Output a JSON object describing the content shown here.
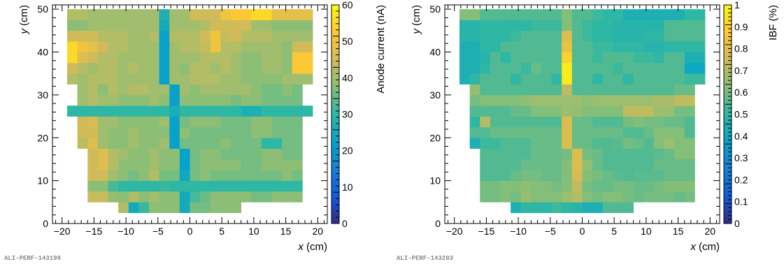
{
  "chart_data": [
    {
      "type": "heatmap",
      "panel_id": "ALI-PERF-143199",
      "title": "",
      "xlabel": "x (cm)",
      "ylabel": "y (cm)",
      "xlim": [
        -21.5,
        21.5
      ],
      "ylim": [
        0,
        51
      ],
      "xticks": [
        -20,
        -15,
        -10,
        -5,
        0,
        5,
        10,
        15,
        20
      ],
      "yticks": [
        0,
        10,
        20,
        30,
        40,
        50
      ],
      "colorbar": {
        "label": "Anode current (nA)",
        "min": 0,
        "max": 60,
        "ticks": [
          0,
          10,
          20,
          30,
          40,
          50,
          60
        ]
      },
      "cell": {
        "dx": 1.6,
        "dy": 2.5,
        "x0": -19.2
      },
      "rows": [
        {
          "y0": 2.5,
          "x0": -11.2,
          "values": [
            42,
            25,
            31,
            38,
            38,
            38,
            25,
            36,
            36,
            38,
            38,
            38
          ]
        },
        {
          "y0": 5.0,
          "x0": -16.0,
          "values": [
            44,
            44,
            39,
            38,
            42,
            38,
            40,
            38,
            38,
            25,
            32,
            35,
            38,
            38,
            38,
            38,
            36,
            36,
            38,
            38,
            38
          ]
        },
        {
          "y0": 7.5,
          "x0": -16.0,
          "values": [
            38,
            38,
            32,
            30,
            30,
            30,
            30,
            31,
            30,
            30,
            30,
            30,
            30,
            30,
            30,
            30,
            30,
            30,
            30,
            30,
            30
          ]
        },
        {
          "y0": 10.0,
          "x0": -16.0,
          "values": [
            45,
            45,
            40,
            38,
            36,
            38,
            42,
            36,
            36,
            24,
            36,
            38,
            36,
            36,
            36,
            36,
            36,
            36,
            36,
            38,
            36
          ]
        },
        {
          "y0": 12.5,
          "x0": -16.0,
          "values": [
            45,
            47,
            42,
            38,
            38,
            38,
            40,
            38,
            38,
            22,
            36,
            38,
            38,
            38,
            38,
            36,
            36,
            38,
            38,
            38,
            38
          ]
        },
        {
          "y0": 15.0,
          "x0": -16.0,
          "values": [
            45,
            47,
            42,
            40,
            38,
            38,
            40,
            38,
            38,
            22,
            36,
            38,
            38,
            36,
            36,
            36,
            36,
            38,
            38,
            36,
            36
          ]
        },
        {
          "y0": 17.5,
          "x0": -17.6,
          "values": [
            43,
            47,
            40,
            38,
            38,
            40,
            38,
            38,
            40,
            22,
            36,
            36,
            36,
            36,
            38,
            36,
            36,
            36,
            30,
            30,
            36,
            36
          ]
        },
        {
          "y0": 20.0,
          "x0": -17.6,
          "values": [
            45,
            45,
            40,
            38,
            38,
            40,
            38,
            38,
            38,
            22,
            38,
            36,
            36,
            36,
            36,
            36,
            36,
            38,
            38,
            36,
            36,
            36
          ]
        },
        {
          "y0": 22.5,
          "x0": -17.6,
          "values": [
            45,
            46,
            40,
            40,
            38,
            38,
            38,
            38,
            40,
            22,
            36,
            38,
            38,
            38,
            36,
            36,
            36,
            38,
            38,
            36,
            36,
            36
          ]
        },
        {
          "y0": 25.0,
          "x0": -19.2,
          "values": [
            30,
            30,
            30,
            30,
            30,
            30,
            30,
            30,
            30,
            30,
            26,
            30,
            30,
            30,
            30,
            30,
            30,
            27,
            27,
            30,
            30,
            30,
            30,
            30
          ]
        },
        {
          "y0": 27.5,
          "x0": -17.6,
          "values": [
            40,
            42,
            40,
            40,
            38,
            38,
            38,
            40,
            38,
            22,
            38,
            38,
            38,
            38,
            38,
            36,
            38,
            38,
            36,
            36,
            36,
            36
          ]
        },
        {
          "y0": 30.0,
          "x0": -17.6,
          "values": [
            40,
            42,
            38,
            42,
            40,
            42,
            42,
            40,
            40,
            22,
            40,
            38,
            40,
            40,
            40,
            40,
            40,
            38,
            36,
            36,
            38,
            36
          ]
        },
        {
          "y0": 32.5,
          "x0": -19.2,
          "values": [
            42,
            40,
            42,
            42,
            42,
            40,
            40,
            40,
            40,
            22,
            40,
            40,
            42,
            42,
            42,
            40,
            40,
            38,
            38,
            38,
            38,
            40,
            40,
            40
          ]
        },
        {
          "y0": 35.0,
          "x0": -19.2,
          "values": [
            45,
            42,
            40,
            42,
            42,
            40,
            42,
            40,
            40,
            22,
            40,
            38,
            42,
            42,
            40,
            42,
            40,
            38,
            38,
            40,
            40,
            38,
            52,
            52
          ]
        },
        {
          "y0": 37.5,
          "x0": -19.2,
          "values": [
            55,
            47,
            45,
            42,
            42,
            40,
            40,
            40,
            40,
            22,
            40,
            40,
            40,
            42,
            42,
            42,
            40,
            38,
            38,
            40,
            40,
            38,
            52,
            52
          ]
        },
        {
          "y0": 40.0,
          "x0": -19.2,
          "values": [
            55,
            50,
            48,
            45,
            42,
            42,
            40,
            40,
            40,
            22,
            40,
            42,
            42,
            44,
            50,
            42,
            42,
            40,
            40,
            40,
            40,
            38,
            45,
            45
          ]
        },
        {
          "y0": 42.5,
          "x0": -19.2,
          "values": [
            45,
            45,
            45,
            42,
            42,
            42,
            40,
            40,
            42,
            22,
            42,
            42,
            42,
            45,
            50,
            44,
            45,
            42,
            42,
            42,
            40,
            40,
            40,
            40
          ]
        },
        {
          "y0": 45.0,
          "x0": -19.2,
          "values": [
            38,
            38,
            40,
            40,
            40,
            40,
            40,
            40,
            40,
            25,
            40,
            40,
            40,
            42,
            45,
            45,
            45,
            45,
            40,
            40,
            38,
            38,
            38,
            38
          ]
        },
        {
          "y0": 47.5,
          "x0": -19.2,
          "values": [
            42,
            42,
            40,
            40,
            40,
            40,
            40,
            40,
            40,
            27,
            40,
            40,
            45,
            45,
            45,
            50,
            52,
            52,
            55,
            55,
            48,
            48,
            48,
            48
          ]
        }
      ]
    },
    {
      "type": "heatmap",
      "panel_id": "ALI-PERF-143203",
      "title": "",
      "xlabel": "x (cm)",
      "ylabel": "y (cm)",
      "xlim": [
        -21.5,
        21.5
      ],
      "ylim": [
        0,
        51
      ],
      "xticks": [
        -20,
        -15,
        -10,
        -5,
        0,
        5,
        10,
        15,
        20
      ],
      "yticks": [
        0,
        10,
        20,
        30,
        40,
        50
      ],
      "colorbar": {
        "label": "IBF (%)",
        "min": 0,
        "max": 1,
        "ticks": [
          0,
          0.1,
          0.2,
          0.3,
          0.4,
          0.5,
          0.6,
          0.7,
          0.8,
          0.9,
          1
        ]
      },
      "cell": {
        "dx": 1.6,
        "dy": 2.5,
        "x0": -19.2
      },
      "rows": [
        {
          "y0": 2.5,
          "x0": -11.2,
          "values": [
            0.45,
            0.5,
            0.5,
            0.5,
            0.52,
            0.5,
            0.48,
            0.45,
            0.45,
            0.55,
            0.55,
            0.55
          ]
        },
        {
          "y0": 5.0,
          "x0": -16.0,
          "values": [
            0.6,
            0.6,
            0.62,
            0.6,
            0.65,
            0.62,
            0.62,
            0.62,
            0.66,
            0.7,
            0.62,
            0.6,
            0.62,
            0.62,
            0.6,
            0.58,
            0.6,
            0.6,
            0.6,
            0.58,
            0.6
          ]
        },
        {
          "y0": 7.5,
          "x0": -16.0,
          "values": [
            0.6,
            0.6,
            0.62,
            0.62,
            0.64,
            0.62,
            0.62,
            0.6,
            0.62,
            0.72,
            0.6,
            0.58,
            0.58,
            0.6,
            0.6,
            0.58,
            0.58,
            0.6,
            0.62,
            0.62,
            0.62
          ]
        },
        {
          "y0": 10.0,
          "x0": -16.0,
          "values": [
            0.55,
            0.55,
            0.55,
            0.58,
            0.6,
            0.6,
            0.58,
            0.58,
            0.62,
            0.76,
            0.62,
            0.6,
            0.58,
            0.56,
            0.55,
            0.56,
            0.56,
            0.56,
            0.58,
            0.58,
            0.58
          ]
        },
        {
          "y0": 12.5,
          "x0": -16.0,
          "values": [
            0.55,
            0.55,
            0.55,
            0.55,
            0.58,
            0.58,
            0.58,
            0.58,
            0.62,
            0.78,
            0.64,
            0.58,
            0.55,
            0.55,
            0.55,
            0.55,
            0.55,
            0.58,
            0.58,
            0.58,
            0.58
          ]
        },
        {
          "y0": 15.0,
          "x0": -16.0,
          "values": [
            0.55,
            0.55,
            0.55,
            0.55,
            0.55,
            0.58,
            0.58,
            0.58,
            0.6,
            0.78,
            0.6,
            0.58,
            0.55,
            0.55,
            0.55,
            0.55,
            0.55,
            0.56,
            0.58,
            0.62,
            0.62
          ]
        },
        {
          "y0": 17.5,
          "x0": -17.6,
          "values": [
            0.45,
            0.52,
            0.52,
            0.55,
            0.55,
            0.55,
            0.58,
            0.58,
            0.58,
            0.78,
            0.58,
            0.58,
            0.55,
            0.55,
            0.56,
            0.6,
            0.58,
            0.55,
            0.62,
            0.66,
            0.62,
            0.62
          ]
        },
        {
          "y0": 20.0,
          "x0": -17.6,
          "values": [
            0.55,
            0.55,
            0.58,
            0.58,
            0.58,
            0.58,
            0.58,
            0.58,
            0.58,
            0.78,
            0.58,
            0.58,
            0.58,
            0.58,
            0.58,
            0.55,
            0.55,
            0.58,
            0.62,
            0.62,
            0.62,
            0.55
          ]
        },
        {
          "y0": 22.5,
          "x0": -17.6,
          "values": [
            0.5,
            0.7,
            0.55,
            0.55,
            0.55,
            0.55,
            0.55,
            0.55,
            0.55,
            0.78,
            0.58,
            0.58,
            0.55,
            0.55,
            0.55,
            0.6,
            0.62,
            0.6,
            0.6,
            0.58,
            0.58,
            0.55
          ]
        },
        {
          "y0": 25.0,
          "x0": -17.6,
          "values": [
            0.55,
            0.55,
            0.55,
            0.55,
            0.58,
            0.58,
            0.62,
            0.62,
            0.62,
            0.66,
            0.65,
            0.62,
            0.62,
            0.62,
            0.62,
            0.72,
            0.72,
            0.72,
            0.66,
            0.66,
            0.6,
            0.6
          ]
        },
        {
          "y0": 27.5,
          "x0": -17.6,
          "values": [
            0.6,
            0.62,
            0.62,
            0.62,
            0.62,
            0.64,
            0.66,
            0.66,
            0.66,
            0.66,
            0.66,
            0.64,
            0.66,
            0.66,
            0.66,
            0.66,
            0.66,
            0.66,
            0.68,
            0.68,
            0.72,
            0.72
          ]
        },
        {
          "y0": 30.0,
          "x0": -17.6,
          "values": [
            0.65,
            0.55,
            0.55,
            0.55,
            0.55,
            0.55,
            0.55,
            0.55,
            0.55,
            0.72,
            0.55,
            0.55,
            0.55,
            0.55,
            0.55,
            0.55,
            0.55,
            0.55,
            0.55,
            0.55,
            0.58,
            0.58
          ]
        },
        {
          "y0": 32.5,
          "x0": -19.2,
          "values": [
            0.45,
            0.5,
            0.55,
            0.55,
            0.55,
            0.5,
            0.55,
            0.55,
            0.55,
            0.5,
            0.96,
            0.55,
            0.55,
            0.5,
            0.55,
            0.55,
            0.5,
            0.55,
            0.55,
            0.55,
            0.55,
            0.55,
            0.52,
            0.52
          ]
        },
        {
          "y0": 35.0,
          "x0": -19.2,
          "values": [
            0.45,
            0.45,
            0.5,
            0.55,
            0.55,
            0.55,
            0.52,
            0.58,
            0.55,
            0.55,
            0.96,
            0.55,
            0.55,
            0.55,
            0.55,
            0.52,
            0.55,
            0.55,
            0.55,
            0.55,
            0.55,
            0.55,
            0.4,
            0.4
          ]
        },
        {
          "y0": 37.5,
          "x0": -19.2,
          "values": [
            0.45,
            0.45,
            0.48,
            0.55,
            0.5,
            0.55,
            0.55,
            0.55,
            0.55,
            0.55,
            0.9,
            0.55,
            0.55,
            0.52,
            0.55,
            0.55,
            0.55,
            0.52,
            0.52,
            0.5,
            0.55,
            0.55,
            0.45,
            0.45
          ]
        },
        {
          "y0": 40.0,
          "x0": -19.2,
          "values": [
            0.45,
            0.45,
            0.5,
            0.5,
            0.55,
            0.55,
            0.55,
            0.55,
            0.55,
            0.55,
            0.82,
            0.55,
            0.55,
            0.52,
            0.52,
            0.5,
            0.5,
            0.5,
            0.48,
            0.48,
            0.5,
            0.5,
            0.5,
            0.5
          ]
        },
        {
          "y0": 42.5,
          "x0": -19.2,
          "values": [
            0.48,
            0.48,
            0.5,
            0.5,
            0.5,
            0.52,
            0.55,
            0.55,
            0.55,
            0.55,
            0.78,
            0.55,
            0.52,
            0.5,
            0.5,
            0.48,
            0.48,
            0.48,
            0.5,
            0.5,
            0.55,
            0.55,
            0.55,
            0.55
          ]
        },
        {
          "y0": 45.0,
          "x0": -19.2,
          "values": [
            0.48,
            0.48,
            0.5,
            0.5,
            0.5,
            0.5,
            0.5,
            0.52,
            0.52,
            0.52,
            0.62,
            0.55,
            0.52,
            0.5,
            0.5,
            0.48,
            0.48,
            0.48,
            0.48,
            0.48,
            0.55,
            0.55,
            0.55,
            0.55
          ]
        },
        {
          "y0": 47.5,
          "x0": -19.2,
          "values": [
            0.62,
            0.62,
            0.55,
            0.55,
            0.55,
            0.55,
            0.55,
            0.55,
            0.55,
            0.55,
            0.62,
            0.55,
            0.55,
            0.52,
            0.5,
            0.5,
            0.45,
            0.45,
            0.45,
            0.45,
            0.45,
            0.45,
            0.5,
            0.5
          ]
        }
      ]
    }
  ]
}
